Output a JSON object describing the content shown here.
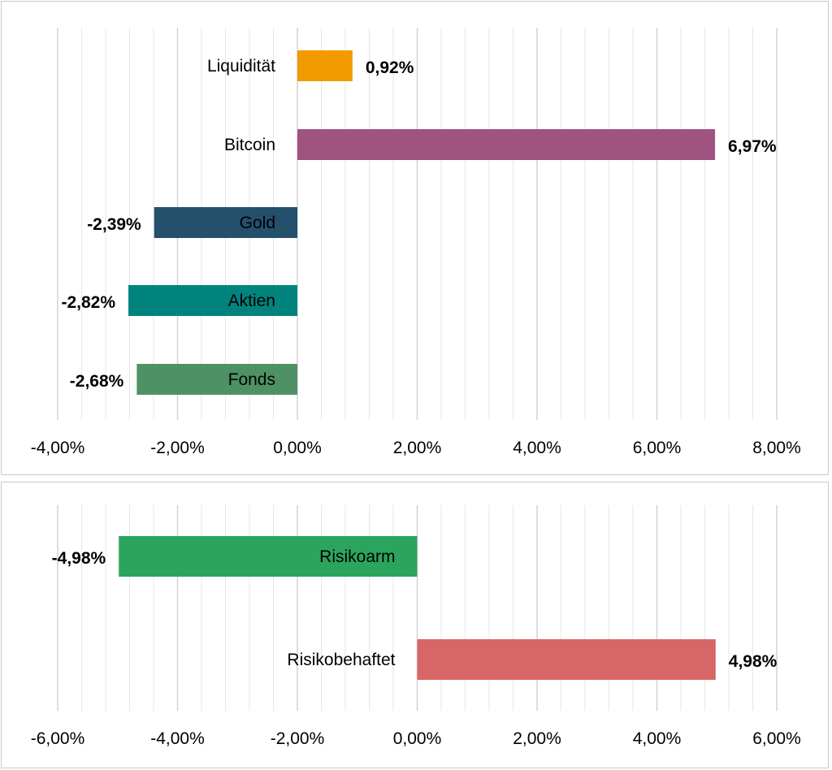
{
  "chart_data": [
    {
      "type": "bar",
      "orientation": "horizontal",
      "categories": [
        "Liquidität",
        "Bitcoin",
        "Gold",
        "Aktien",
        "Fonds"
      ],
      "values": [
        0.92,
        6.97,
        -2.39,
        -2.82,
        -2.68
      ],
      "value_labels": [
        "0,92%",
        "6,97%",
        "-2,39%",
        "-2,82%",
        "-2,68%"
      ],
      "colors": [
        "#F29B00",
        "#9E5381",
        "#24506B",
        "#00847D",
        "#4E9165"
      ],
      "xlim": [
        -4,
        8
      ],
      "major_ticks": [
        -4,
        -2,
        0,
        2,
        4,
        6,
        8
      ],
      "tick_labels": [
        "-4,00%",
        "-2,00%",
        "0,00%",
        "2,00%",
        "4,00%",
        "6,00%",
        "8,00%"
      ],
      "minor_step": 0.4,
      "title": "",
      "xlabel": "",
      "ylabel": ""
    },
    {
      "type": "bar",
      "orientation": "horizontal",
      "categories": [
        "Risikoarm",
        "Risikobehaftet"
      ],
      "values": [
        -4.98,
        4.98
      ],
      "value_labels": [
        "-4,98%",
        "4,98%"
      ],
      "colors": [
        "#2BA55E",
        "#D76666"
      ],
      "xlim": [
        -6,
        6
      ],
      "major_ticks": [
        -6,
        -4,
        -2,
        0,
        2,
        4,
        6
      ],
      "tick_labels": [
        "-6,00%",
        "-4,00%",
        "-2,00%",
        "0,00%",
        "2,00%",
        "4,00%",
        "6,00%"
      ],
      "minor_step": 0.4,
      "title": "",
      "xlabel": "",
      "ylabel": ""
    }
  ]
}
